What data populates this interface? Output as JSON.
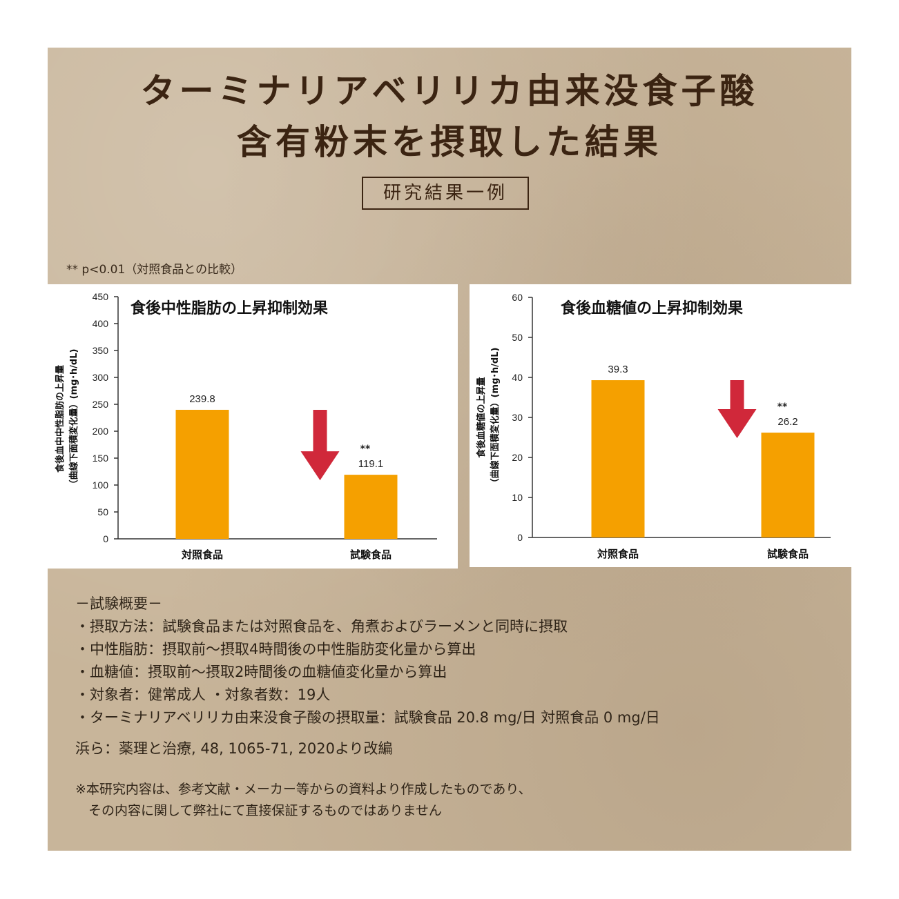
{
  "header": {
    "title_line1": "ターミナリアベリリカ由来没食子酸",
    "title_line2": "含有粉末を摂取した結果",
    "tag": "研究結果一例"
  },
  "p_note": "** p<0.01（対照食品との比較）",
  "chart_data": [
    {
      "type": "bar",
      "title": "食後中性脂肪の上昇抑制効果",
      "ylabel_line1": "食後血中中性脂肪の上昇量",
      "ylabel_line2": "（曲線下面積変化量）(mg･h/dL)",
      "categories": [
        "対照食品",
        "試験食品"
      ],
      "values": [
        239.8,
        119.1
      ],
      "value_labels": [
        "239.8",
        "119.1"
      ],
      "significance": [
        "",
        "**"
      ],
      "ylim": [
        0,
        450
      ],
      "yticks": [
        0,
        50,
        100,
        150,
        200,
        250,
        300,
        350,
        400,
        450
      ],
      "bar_color": "#f5a000",
      "arrow_color": "#d0283a",
      "grid": false
    },
    {
      "type": "bar",
      "title": "食後血糖値の上昇抑制効果",
      "ylabel_line1": "食後血糖値の上昇量",
      "ylabel_line2": "（曲線下面積変化量）(mg･h/dL)",
      "categories": [
        "対照食品",
        "試験食品"
      ],
      "values": [
        39.3,
        26.2
      ],
      "value_labels": [
        "39.3",
        "26.2"
      ],
      "significance": [
        "",
        "**"
      ],
      "ylim": [
        0,
        60
      ],
      "yticks": [
        0,
        10,
        20,
        30,
        40,
        50,
        60
      ],
      "bar_color": "#f5a000",
      "arrow_color": "#d0283a",
      "grid": false
    }
  ],
  "overview": {
    "heading": "－試験概要－",
    "items": [
      "・摂取方法：試験食品または対照食品を、角煮およびラーメンと同時に摂取",
      "・中性脂肪：摂取前～摂取4時間後の中性脂肪変化量から算出",
      "・血糖値：摂取前～摂取2時間後の血糖値変化量から算出",
      "・対象者：健常成人 ・対象者数：19人",
      "・ターミナリアベリリカ由来没食子酸の摂取量：試験食品 20.8 mg/日 対照食品 0 mg/日"
    ]
  },
  "reference": "浜ら：薬理と治療, 48, 1065-71, 2020より改編",
  "disclaimer": {
    "line1": "※本研究内容は、参考文献・メーカー等からの資料より作成したものであり、",
    "line2": "　その内容に関して弊社にて直接保証するものではありません"
  }
}
